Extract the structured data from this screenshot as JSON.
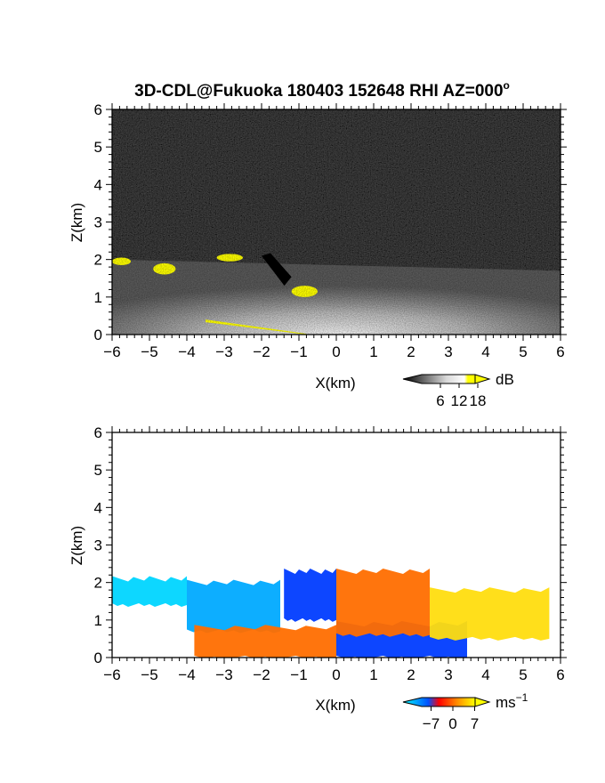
{
  "title": "3D-CDL@Fukuoka 180403 152648 RHI AZ=000",
  "title_degree_mark": "o",
  "chart_data": [
    {
      "id": "snr",
      "type": "heatmap",
      "variable": "SNR",
      "xlabel": "X(km)",
      "ylabel": "Z(km)",
      "xlim": [
        -6,
        6
      ],
      "ylim": [
        0,
        6
      ],
      "xticks": [
        -6,
        -5,
        -4,
        -3,
        -2,
        -1,
        0,
        1,
        2,
        3,
        4,
        5,
        6
      ],
      "yticks": [
        0,
        1,
        2,
        3,
        4,
        5,
        6
      ],
      "colorbar": {
        "unit": "dB",
        "ticks": [
          6,
          12,
          18
        ],
        "range": [
          0,
          20
        ],
        "colors": [
          "#000000",
          "#ffffff",
          "#ffff00"
        ]
      },
      "features": [
        {
          "label": "background noise",
          "x": [
            -6,
            6
          ],
          "z": [
            0,
            6
          ],
          "value_db": 1
        },
        {
          "label": "boundary layer echo",
          "x": [
            -6,
            6
          ],
          "z": [
            0,
            2
          ],
          "value_db": 10
        },
        {
          "label": "high-SNR cloud patch",
          "x": [
            -6,
            -5.5
          ],
          "z": [
            1.85,
            2.05
          ],
          "value_db": 19
        },
        {
          "label": "high-SNR cloud patch",
          "x": [
            -4.9,
            -4.3
          ],
          "z": [
            1.6,
            1.9
          ],
          "value_db": 19
        },
        {
          "label": "high-SNR cloud patch",
          "x": [
            -3.2,
            -2.5
          ],
          "z": [
            1.95,
            2.15
          ],
          "value_db": 19
        },
        {
          "label": "high-SNR cloud patch",
          "x": [
            -1.2,
            -0.5
          ],
          "z": [
            1.0,
            1.3
          ],
          "value_db": 19
        },
        {
          "label": "high-SNR surface line",
          "x": [
            -3.5,
            -0.8
          ],
          "z": [
            0,
            0.5
          ],
          "value_db": 19
        },
        {
          "label": "beam blockage",
          "x": [
            -2,
            -1.2
          ],
          "z": [
            1.3,
            2.1
          ],
          "value_db": 0
        }
      ]
    },
    {
      "id": "doppler",
      "type": "heatmap",
      "variable": "Doppler velocity",
      "xlabel": "X(km)",
      "ylabel": "Z(km)",
      "xlim": [
        -6,
        6
      ],
      "ylim": [
        0,
        6
      ],
      "xticks": [
        -6,
        -5,
        -4,
        -3,
        -2,
        -1,
        0,
        1,
        2,
        3,
        4,
        5,
        6
      ],
      "yticks": [
        0,
        1,
        2,
        3,
        4,
        5,
        6
      ],
      "colorbar": {
        "unit": "ms",
        "unit_exponent": "−1",
        "tick_labels": [
          "−7",
          "0",
          "7"
        ],
        "ticks": [
          -7,
          0,
          7
        ],
        "range": [
          -10,
          10
        ],
        "colors": [
          "#00ffff",
          "#0000ff",
          "#ff0000",
          "#ffff00"
        ]
      },
      "features": [
        {
          "label": "far negative",
          "x": [
            -6,
            -4
          ],
          "z": [
            1.4,
            2.1
          ],
          "velocity_ms": -8
        },
        {
          "label": "negative region",
          "x": [
            -4,
            -1.5
          ],
          "z": [
            0.7,
            2.0
          ],
          "velocity_ms": -6
        },
        {
          "label": "negative region",
          "x": [
            -1.4,
            0
          ],
          "z": [
            1.0,
            2.3
          ],
          "velocity_ms": -3
        },
        {
          "label": "negative lower",
          "x": [
            0,
            3.5
          ],
          "z": [
            0,
            0.9
          ],
          "velocity_ms": -3
        },
        {
          "label": "positive near surface",
          "x": [
            -3.8,
            0
          ],
          "z": [
            0,
            0.8
          ],
          "velocity_ms": 3
        },
        {
          "label": "positive region",
          "x": [
            0,
            2.5
          ],
          "z": [
            0.6,
            2.3
          ],
          "velocity_ms": 3
        },
        {
          "label": "positive far",
          "x": [
            2.5,
            5.7
          ],
          "z": [
            0.5,
            1.8
          ],
          "velocity_ms": 7
        }
      ]
    }
  ]
}
